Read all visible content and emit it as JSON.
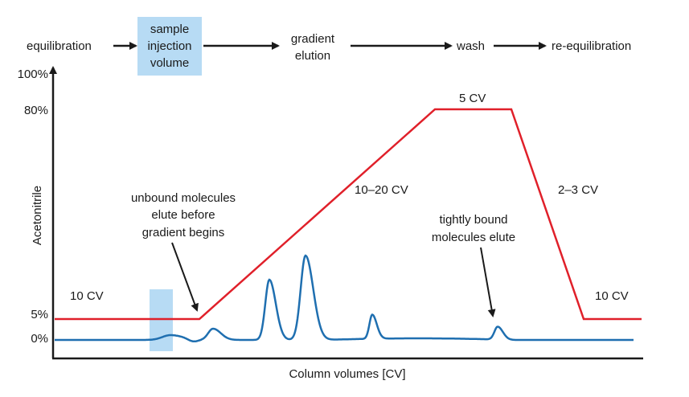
{
  "colors": {
    "gradient_line": "#e0202a",
    "signal_line": "#1f6fb0",
    "highlight": "#b7dbf4",
    "axis": "#1a1a1a",
    "text": "#1a1a1a"
  },
  "workflow": {
    "steps": [
      "equilibration",
      "sample injection volume",
      "gradient elution",
      "wash",
      "re-equilibration"
    ],
    "step_lines": {
      "equilibration": [
        "equilibration"
      ],
      "sample": [
        "sample",
        "injection",
        "volume"
      ],
      "gradient": [
        "gradient",
        "elution"
      ],
      "wash": [
        "wash"
      ],
      "reequilibration": [
        "re-equilibration"
      ]
    }
  },
  "axes": {
    "ylabel": "Acetonitrile",
    "xlabel": "Column volumes [CV]",
    "yticks": [
      "100%",
      "80%",
      "5%",
      "0%"
    ]
  },
  "segments": {
    "start": "10 CV",
    "gradient": "10–20 CV",
    "wash": "5 CV",
    "return": "2–3 CV",
    "end": "10 CV"
  },
  "annotations": {
    "unbound": [
      "unbound molecules",
      "elute before",
      "gradient begins"
    ],
    "tight": [
      "tightly bound",
      "molecules elute"
    ]
  },
  "chart_data": {
    "type": "line",
    "ylabel": "Acetonitrile",
    "xlabel": "Column volumes [CV]",
    "ylim": [
      0,
      100
    ],
    "y_ticks": [
      0,
      5,
      80,
      100
    ],
    "grid": false,
    "acetonitrile_gradient_percent": [
      5,
      5,
      80,
      80,
      5,
      5
    ]
  }
}
